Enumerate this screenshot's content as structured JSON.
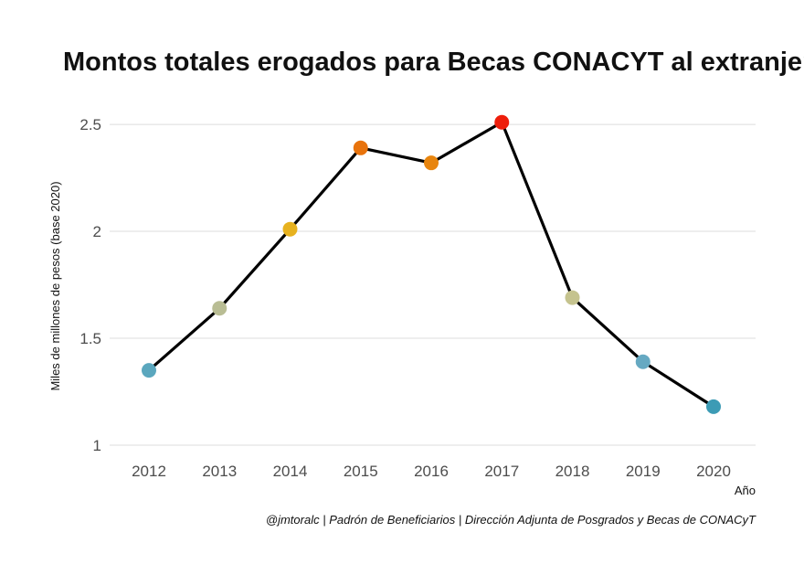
{
  "chart_data": {
    "type": "line",
    "title": "Montos totales erogados para Becas CONACYT al extranjero",
    "xlabel": "Año",
    "ylabel": "Miles de millones de pesos (base 2020)",
    "caption": "@jmtoralc | Padrón de Beneficiarios | Dirección Adjunta de Posgrados y Becas de CONACyT",
    "x": [
      "2012",
      "2013",
      "2014",
      "2015",
      "2016",
      "2017",
      "2018",
      "2019",
      "2020"
    ],
    "series": [
      {
        "values": [
          1.35,
          1.64,
          2.01,
          2.39,
          2.32,
          2.51,
          1.69,
          1.39,
          1.18
        ],
        "point_colors": [
          "#5BA7BE",
          "#B9BD94",
          "#E7B21F",
          "#E8730C",
          "#E8850E",
          "#EE1E0B",
          "#C5C38E",
          "#66A9C2",
          "#3C9BB5"
        ],
        "line_color": "#000000"
      }
    ],
    "ylim": [
      0.97,
      2.62
    ],
    "yticks": [
      1,
      1.5,
      2,
      2.5
    ],
    "ytick_labels": [
      "1",
      "1.5",
      "2",
      "2.5"
    ],
    "grid": true,
    "legend": "none"
  }
}
